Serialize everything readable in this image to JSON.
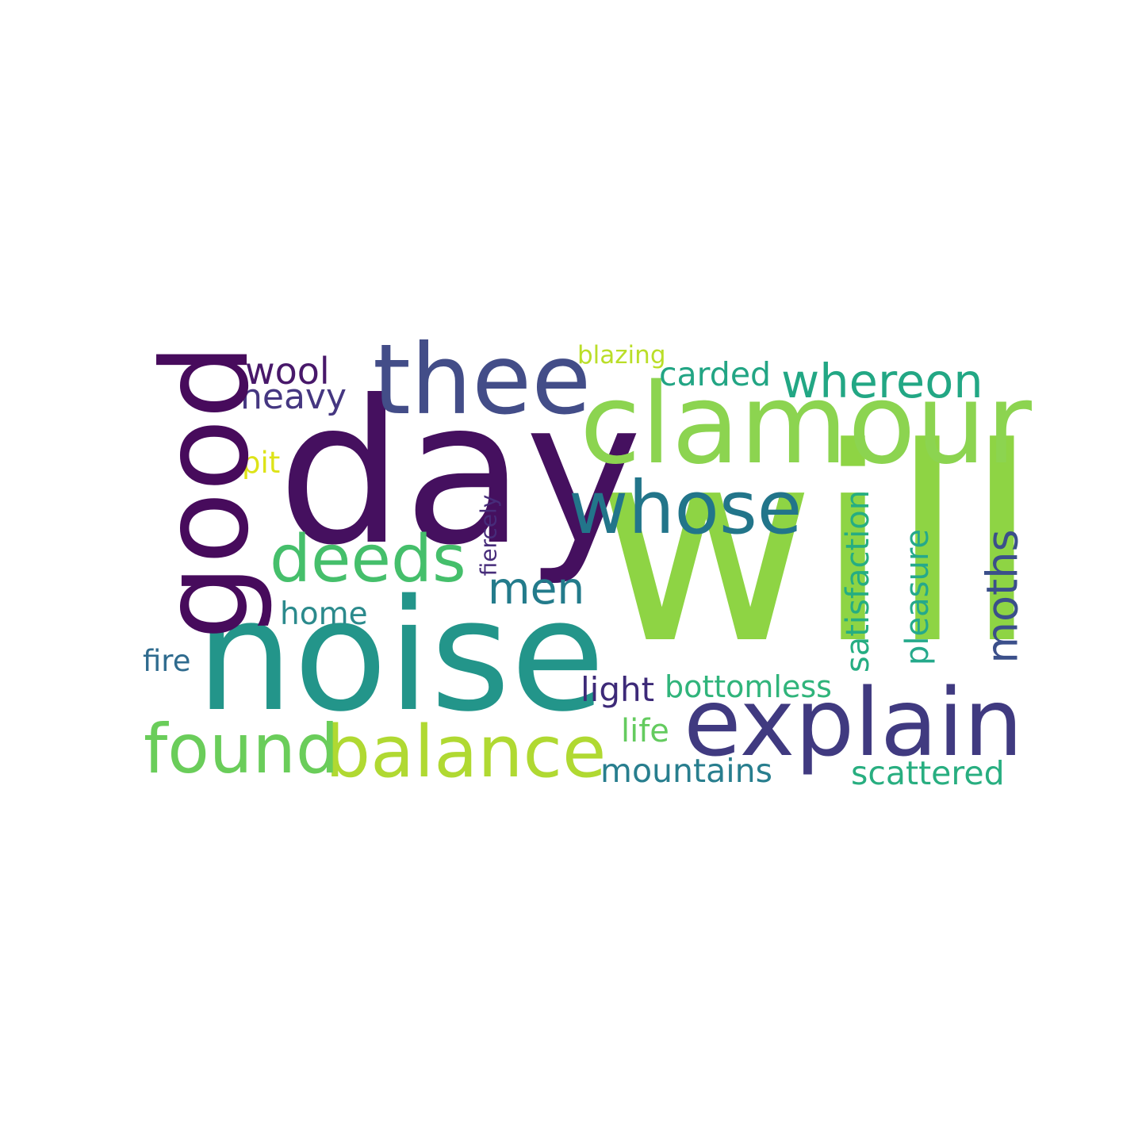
{
  "words": [
    {
      "text": "will",
      "color": "#8ed444",
      "vertical": false
    },
    {
      "text": "day",
      "color": "#45105f",
      "vertical": false
    },
    {
      "text": "noise",
      "color": "#23958a",
      "vertical": false
    },
    {
      "text": "clamour",
      "color": "#8cd450",
      "vertical": false
    },
    {
      "text": "good",
      "color": "#470b5c",
      "vertical": true
    },
    {
      "text": "thee",
      "color": "#434d88",
      "vertical": false
    },
    {
      "text": "explain",
      "color": "#403a80",
      "vertical": false
    },
    {
      "text": "whose",
      "color": "#22758a",
      "vertical": false
    },
    {
      "text": "balance",
      "color": "#b0d932",
      "vertical": false
    },
    {
      "text": "found",
      "color": "#6acd5a",
      "vertical": false
    },
    {
      "text": "deeds",
      "color": "#45bf6b",
      "vertical": false
    },
    {
      "text": "whereon",
      "color": "#22a784",
      "vertical": false
    },
    {
      "text": "moths",
      "color": "#3b4f8a",
      "vertical": true
    },
    {
      "text": "men",
      "color": "#237b8b",
      "vertical": false
    },
    {
      "text": "wool",
      "color": "#48186a",
      "vertical": false
    },
    {
      "text": "heavy",
      "color": "#453781",
      "vertical": false
    },
    {
      "text": "carded",
      "color": "#22a584",
      "vertical": false
    },
    {
      "text": "satisfaction",
      "color": "#25ad82",
      "vertical": true
    },
    {
      "text": "pleasure",
      "color": "#25a98b",
      "vertical": true
    },
    {
      "text": "mountains",
      "color": "#287e8e",
      "vertical": false
    },
    {
      "text": "scattered",
      "color": "#28ae80",
      "vertical": false
    },
    {
      "text": "bottomless",
      "color": "#30b47b",
      "vertical": false
    },
    {
      "text": "home",
      "color": "#2b8a8c",
      "vertical": false
    },
    {
      "text": "light",
      "color": "#3d2a78",
      "vertical": false
    },
    {
      "text": "life",
      "color": "#64cb5f",
      "vertical": false
    },
    {
      "text": "fire",
      "color": "#2f6b8e",
      "vertical": false
    },
    {
      "text": "pit",
      "color": "#dde318",
      "vertical": false
    },
    {
      "text": "blazing",
      "color": "#bade28",
      "vertical": false
    },
    {
      "text": "fiercely",
      "color": "#472c7a",
      "vertical": true
    }
  ]
}
